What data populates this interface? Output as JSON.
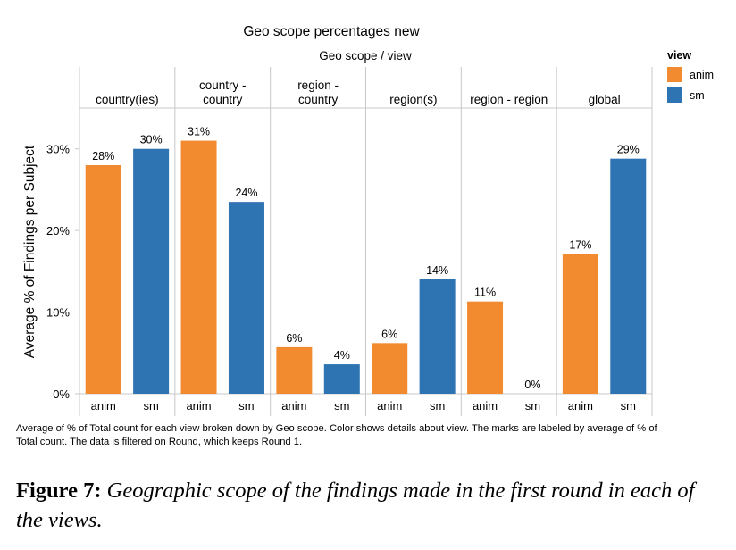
{
  "chart_data": {
    "type": "bar",
    "title": "Geo scope percentages new",
    "column_header": "Geo scope  /  view",
    "ylabel": "Average % of Findings per Subject",
    "xlabel": "",
    "ylim": [
      0,
      0.35
    ],
    "yticks": [
      {
        "value": 0,
        "label": "0%"
      },
      {
        "value": 0.1,
        "label": "10%"
      },
      {
        "value": 0.2,
        "label": "20%"
      },
      {
        "value": 0.3,
        "label": "30%"
      }
    ],
    "grid": false,
    "legend": {
      "title": "view",
      "position": "top-right",
      "items": [
        {
          "name": "anim",
          "color": "#F28B30"
        },
        {
          "name": "sm",
          "color": "#2E73B2"
        }
      ]
    },
    "groups": [
      {
        "label_lines": [
          "country(ies)"
        ],
        "bars": [
          {
            "view": "anim",
            "value": 0.28,
            "label": "28%"
          },
          {
            "view": "sm",
            "value": 0.3,
            "label": "30%"
          }
        ]
      },
      {
        "label_lines": [
          "country -",
          "country"
        ],
        "bars": [
          {
            "view": "anim",
            "value": 0.31,
            "label": "31%"
          },
          {
            "view": "sm",
            "value": 0.235,
            "label": "24%"
          }
        ]
      },
      {
        "label_lines": [
          "region -",
          "country"
        ],
        "bars": [
          {
            "view": "anim",
            "value": 0.057,
            "label": "6%"
          },
          {
            "view": "sm",
            "value": 0.036,
            "label": "4%"
          }
        ]
      },
      {
        "label_lines": [
          "region(s)"
        ],
        "bars": [
          {
            "view": "anim",
            "value": 0.062,
            "label": "6%"
          },
          {
            "view": "sm",
            "value": 0.14,
            "label": "14%"
          }
        ]
      },
      {
        "label_lines": [
          "region - region"
        ],
        "bars": [
          {
            "view": "anim",
            "value": 0.113,
            "label": "11%"
          },
          {
            "view": "sm",
            "value": 0,
            "label": "0%"
          }
        ]
      },
      {
        "label_lines": [
          "global"
        ],
        "bars": [
          {
            "view": "anim",
            "value": 0.171,
            "label": "17%"
          },
          {
            "view": "sm",
            "value": 0.288,
            "label": "29%"
          }
        ]
      }
    ]
  },
  "note": "Average of % of Total count for each view broken down by Geo scope.  Color shows details about view.  The marks are labeled by average of % of Total count. The data is filtered on Round, which keeps Round 1.",
  "figure_caption": {
    "label": "Figure 7:",
    "text": " Geographic scope of the findings made in the first round in each of the views."
  }
}
